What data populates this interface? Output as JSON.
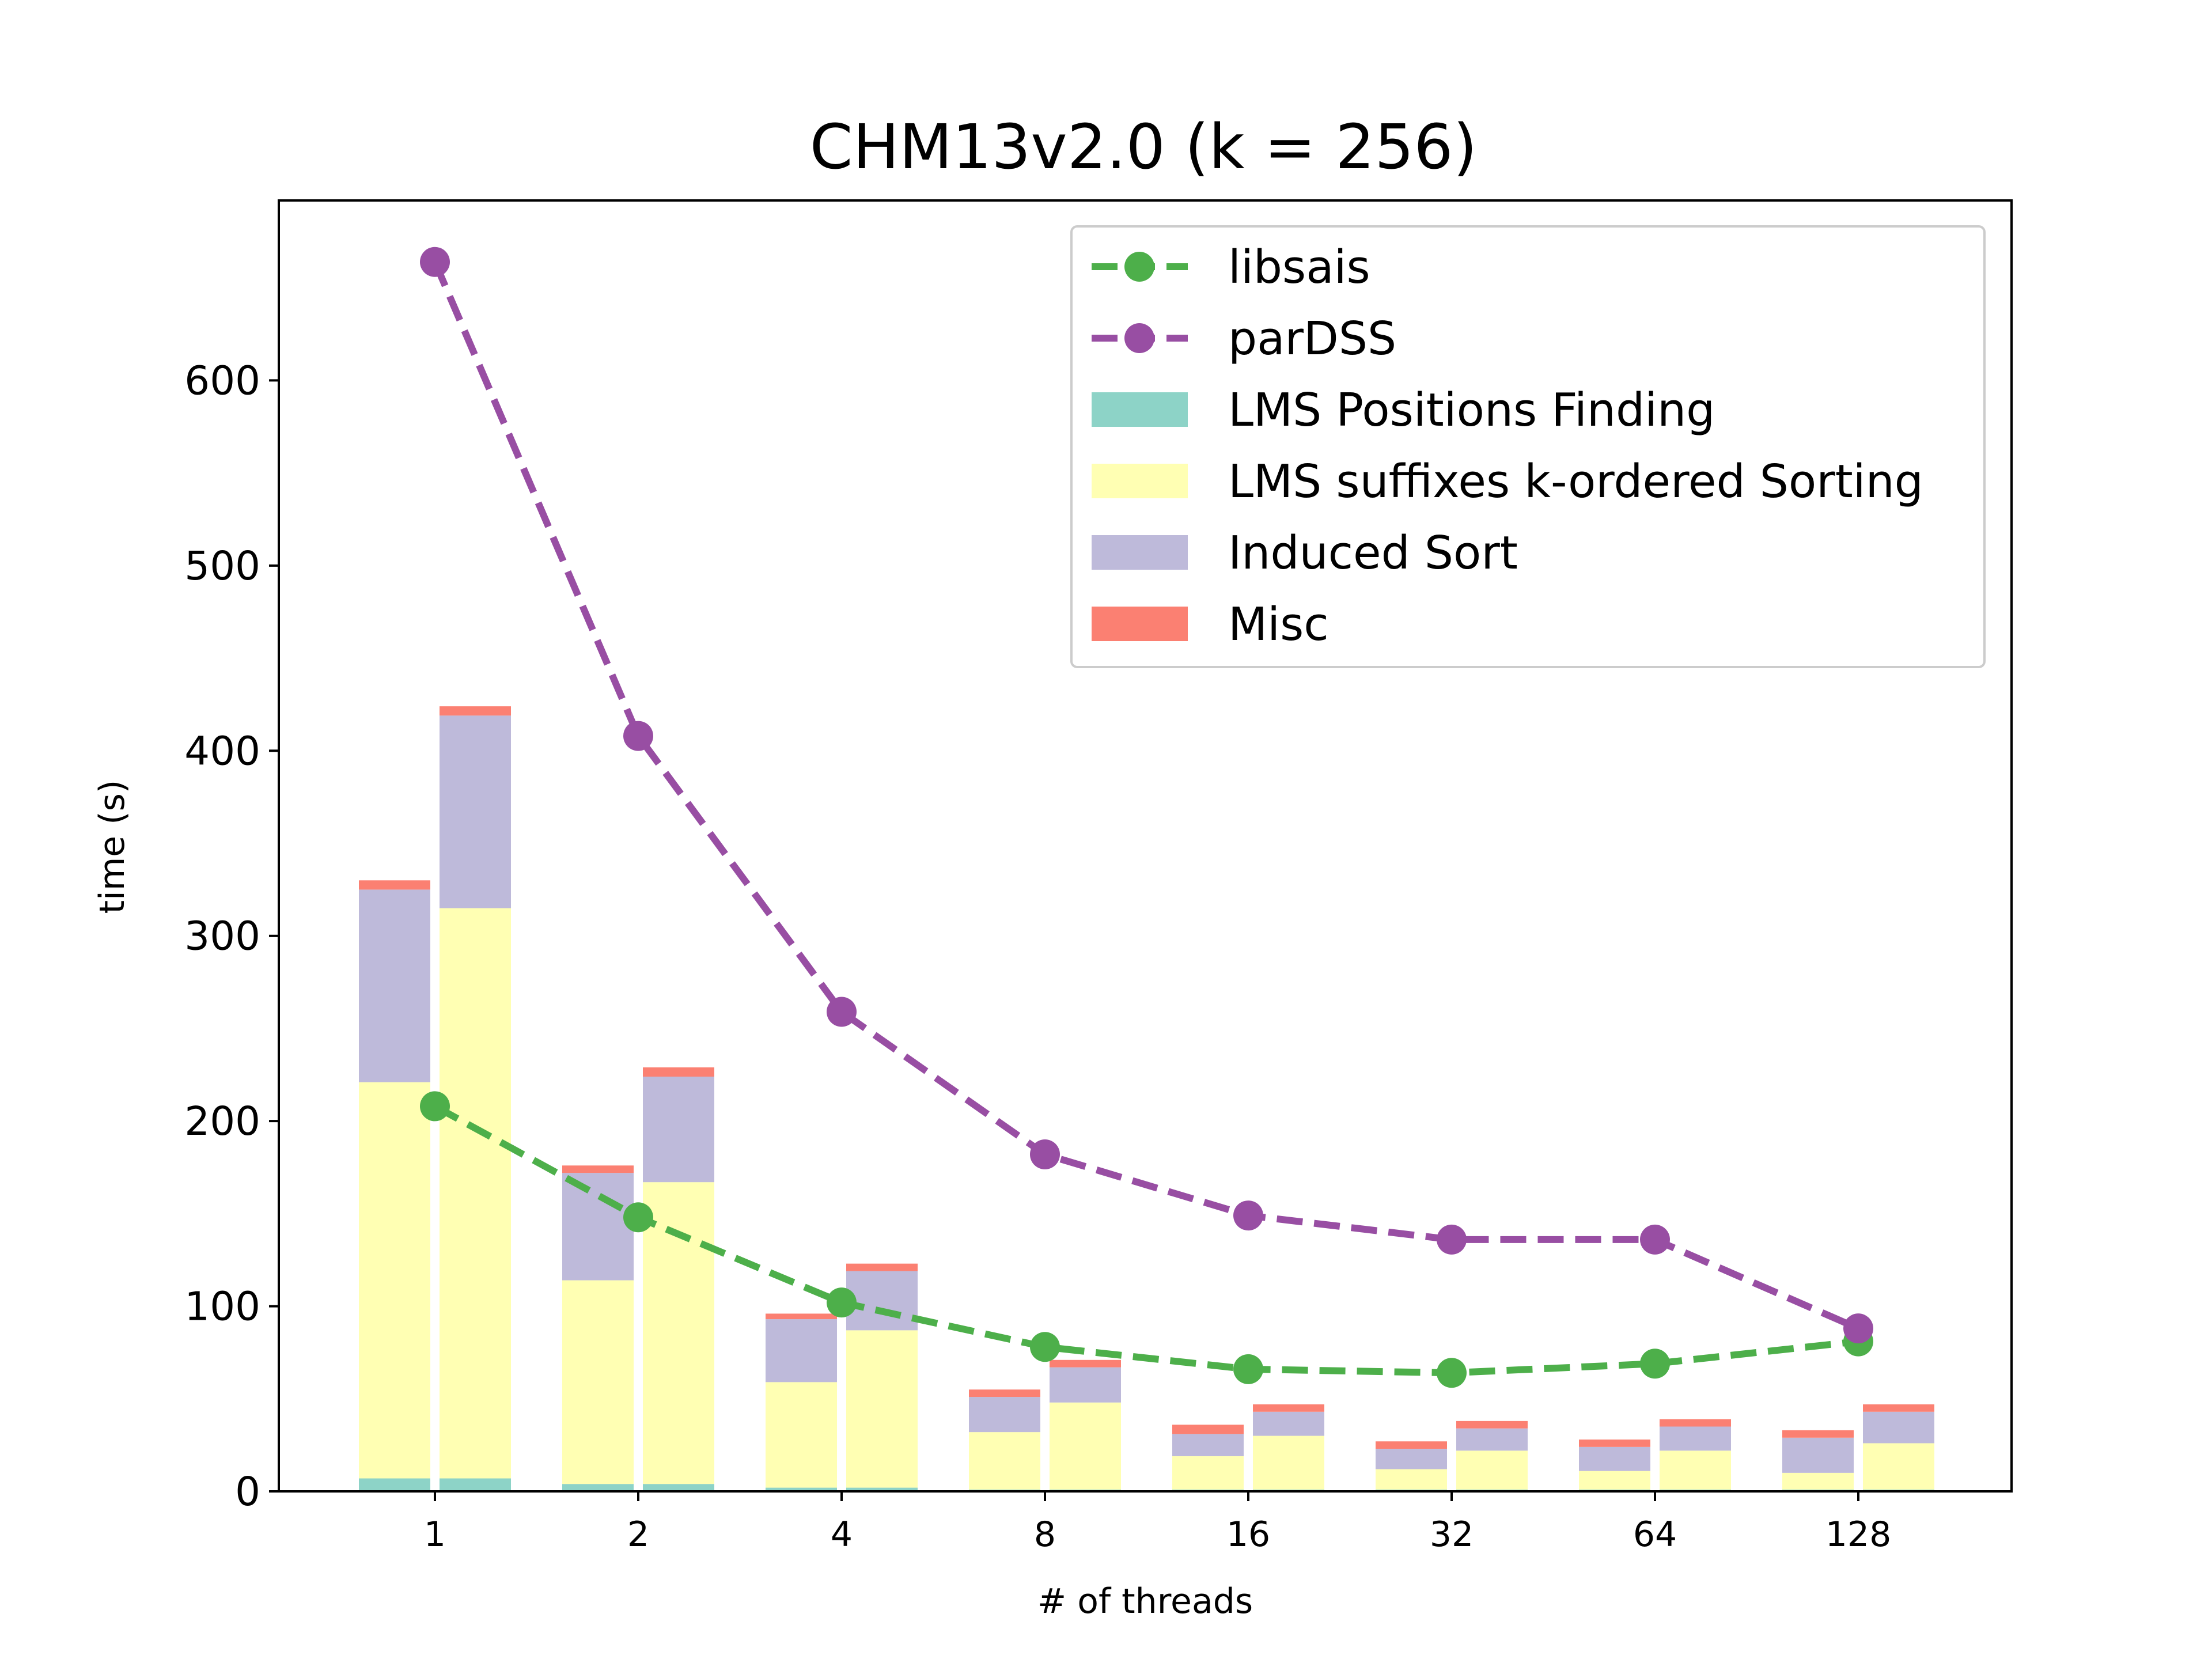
{
  "chart_data": {
    "type": "bar",
    "title": "CHM13v2.0 (k = 256)",
    "xlabel": "# of threads",
    "ylabel": "time (s)",
    "ylim": [
      0,
      700
    ],
    "yticks": [
      0,
      100,
      200,
      300,
      400,
      500,
      600
    ],
    "categories": [
      "1",
      "2",
      "4",
      "8",
      "16",
      "32",
      "64",
      "128"
    ],
    "grid": false,
    "legend_position": "top-right",
    "stacked_bars": [
      {
        "group": "left",
        "segments": [
          {
            "name": "LMS Positions Finding",
            "color": "#8dd3c7",
            "values": [
              7,
              4,
              2,
              1,
              1,
              1,
              1,
              1
            ]
          },
          {
            "name": "LMS suffixes k-ordered Sorting",
            "color": "#ffffb3",
            "values": [
              214,
              110,
              57,
              31,
              18,
              11,
              10,
              9
            ]
          },
          {
            "name": "Induced Sort",
            "color": "#bebada",
            "values": [
              104,
              58,
              34,
              19,
              12,
              11,
              13,
              19
            ]
          },
          {
            "name": "Misc",
            "color": "#fb8072",
            "values": [
              5,
              4,
              3,
              4,
              5,
              4,
              4,
              4
            ]
          }
        ]
      },
      {
        "group": "right",
        "segments": [
          {
            "name": "LMS Positions Finding",
            "color": "#8dd3c7",
            "values": [
              7,
              4,
              2,
              1,
              1,
              1,
              1,
              1
            ]
          },
          {
            "name": "LMS suffixes k-ordered Sorting",
            "color": "#ffffb3",
            "values": [
              308,
              163,
              85,
              47,
              29,
              21,
              21,
              25
            ]
          },
          {
            "name": "Induced Sort",
            "color": "#bebada",
            "values": [
              104,
              57,
              32,
              19,
              13,
              12,
              13,
              17
            ]
          },
          {
            "name": "Misc",
            "color": "#fb8072",
            "values": [
              5,
              5,
              4,
              4,
              4,
              4,
              4,
              4
            ]
          }
        ]
      }
    ],
    "lines": [
      {
        "name": "libsais",
        "color": "#4daf4a",
        "style": "dashed",
        "marker": "circle",
        "values": [
          208,
          148,
          102,
          78,
          66,
          64,
          69,
          81
        ]
      },
      {
        "name": "parDSS",
        "color": "#984ea3",
        "style": "dashed",
        "marker": "circle",
        "values": [
          664,
          408,
          259,
          182,
          149,
          136,
          136,
          88
        ]
      }
    ],
    "legend": [
      {
        "label": "libsais",
        "kind": "line",
        "color": "#4daf4a"
      },
      {
        "label": "parDSS",
        "kind": "line",
        "color": "#984ea3"
      },
      {
        "label": "LMS Positions Finding",
        "kind": "patch",
        "color": "#8dd3c7"
      },
      {
        "label": "LMS suffixes k-ordered Sorting",
        "kind": "patch",
        "color": "#ffffb3"
      },
      {
        "label": "Induced Sort",
        "kind": "patch",
        "color": "#bebada"
      },
      {
        "label": "Misc",
        "kind": "patch",
        "color": "#fb8072"
      }
    ]
  }
}
